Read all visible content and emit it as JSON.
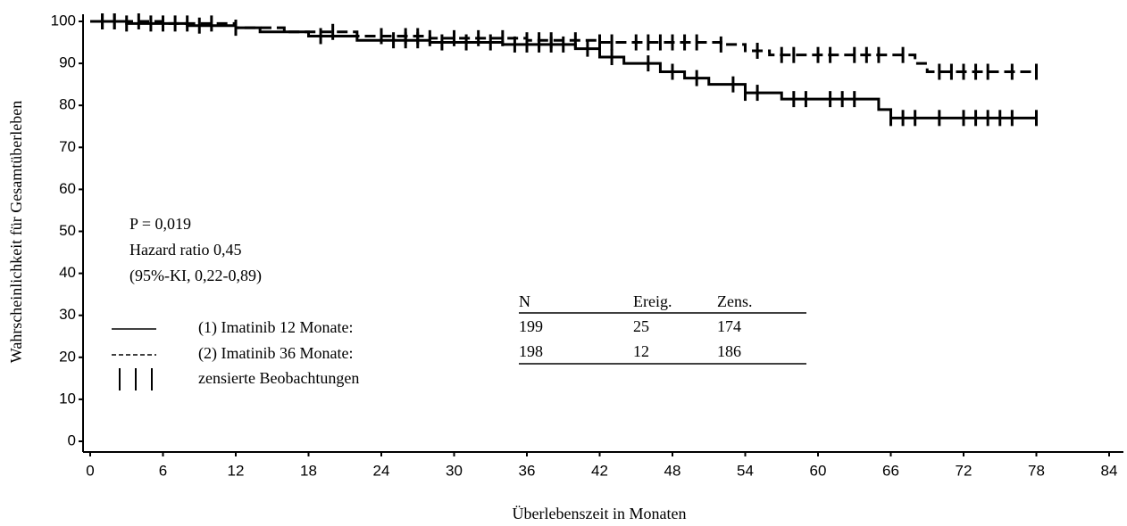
{
  "chart_data": {
    "type": "step",
    "x_label": "Überlebenszeit in Monaten",
    "y_label": "Wahrscheinlichkeit für Gesamtüberleben",
    "xlim": [
      0,
      84
    ],
    "ylim": [
      0,
      100
    ],
    "xticks": [
      0,
      6,
      12,
      18,
      24,
      30,
      36,
      42,
      48,
      54,
      60,
      66,
      72,
      78,
      84
    ],
    "yticks": [
      0,
      10,
      20,
      30,
      40,
      50,
      60,
      70,
      80,
      90,
      100
    ],
    "annotations": [
      "P = 0,019",
      "Hazard ratio 0,45",
      "(95%-KI, 0,22-0,89)"
    ],
    "censor_label": "zensierte Beobachtungen",
    "series": [
      {
        "name": "(1) Imatinib 12 Monate:",
        "color": "#000",
        "dash": false,
        "x": [
          0,
          3,
          8,
          12,
          14,
          18,
          22,
          28,
          34,
          40,
          42,
          44,
          47,
          49,
          51,
          54,
          57,
          65,
          66,
          78
        ],
        "values": [
          100,
          99.5,
          99,
          98.5,
          97.5,
          96.5,
          95.5,
          95,
          94.5,
          93.5,
          91.5,
          90,
          88,
          86.5,
          85,
          83,
          81.5,
          79,
          77,
          77
        ],
        "censored_x": [
          1,
          2,
          3,
          5,
          7,
          9,
          12,
          19,
          25,
          26,
          27,
          29,
          31,
          33,
          35,
          36,
          37,
          38,
          39,
          41,
          43,
          46,
          48,
          50,
          53,
          54,
          55,
          58,
          59,
          61,
          62,
          63,
          66,
          67,
          68,
          70,
          72,
          73,
          74,
          75,
          76,
          78
        ]
      },
      {
        "name": "(2) Imatinib 36 Monate:",
        "color": "#000",
        "dash": true,
        "x": [
          0,
          6,
          12,
          16,
          22,
          28,
          36,
          42,
          52,
          54,
          56,
          68,
          69,
          78
        ],
        "values": [
          100,
          99.5,
          98.5,
          97.5,
          96.5,
          96,
          95.5,
          95,
          94.5,
          93,
          92,
          90,
          88,
          88
        ],
        "censored_x": [
          1,
          2,
          4,
          6,
          8,
          10,
          12,
          20,
          24,
          26,
          27,
          28,
          30,
          32,
          34,
          36,
          37,
          38,
          40,
          42,
          43,
          45,
          46,
          47,
          48,
          49,
          50,
          52,
          55,
          57,
          58,
          60,
          61,
          63,
          64,
          65,
          67,
          70,
          71,
          72,
          73,
          74,
          76,
          78
        ]
      }
    ],
    "table": {
      "columns": [
        "N",
        "Ereig.",
        "Zens."
      ],
      "rows": [
        [
          199,
          25,
          174
        ],
        [
          198,
          12,
          186
        ]
      ]
    }
  }
}
